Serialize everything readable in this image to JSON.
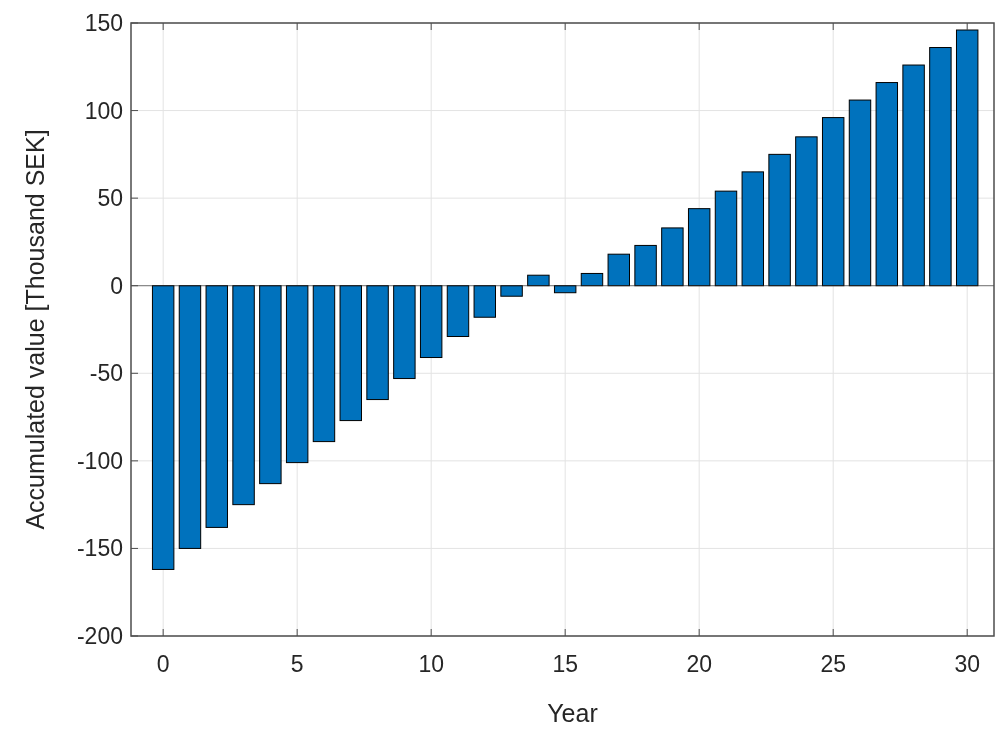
{
  "chart_data": {
    "type": "bar",
    "xlabel": "Year",
    "ylabel": "Accumulated value [Thousand SEK]",
    "x": [
      0,
      1,
      2,
      3,
      4,
      5,
      6,
      7,
      8,
      9,
      10,
      11,
      12,
      13,
      14,
      15,
      16,
      17,
      18,
      19,
      20,
      21,
      22,
      23,
      24,
      25,
      26,
      27,
      28,
      29,
      30
    ],
    "values": [
      -162,
      -150,
      -138,
      -125,
      -113,
      -101,
      -89,
      -77,
      -65,
      -53,
      -41,
      -29,
      -18,
      -6,
      6,
      -4,
      7,
      18,
      23,
      33,
      44,
      54,
      65,
      75,
      85,
      96,
      106,
      116,
      126,
      136,
      146
    ],
    "color": "#0072bd",
    "xlim": [
      -1.2,
      31
    ],
    "xticks": [
      0,
      5,
      10,
      15,
      20,
      25,
      30
    ],
    "ylim": [
      -200,
      150
    ],
    "yticks": [
      -200,
      -150,
      -100,
      -50,
      0,
      50,
      100,
      150
    ],
    "grid": true
  }
}
